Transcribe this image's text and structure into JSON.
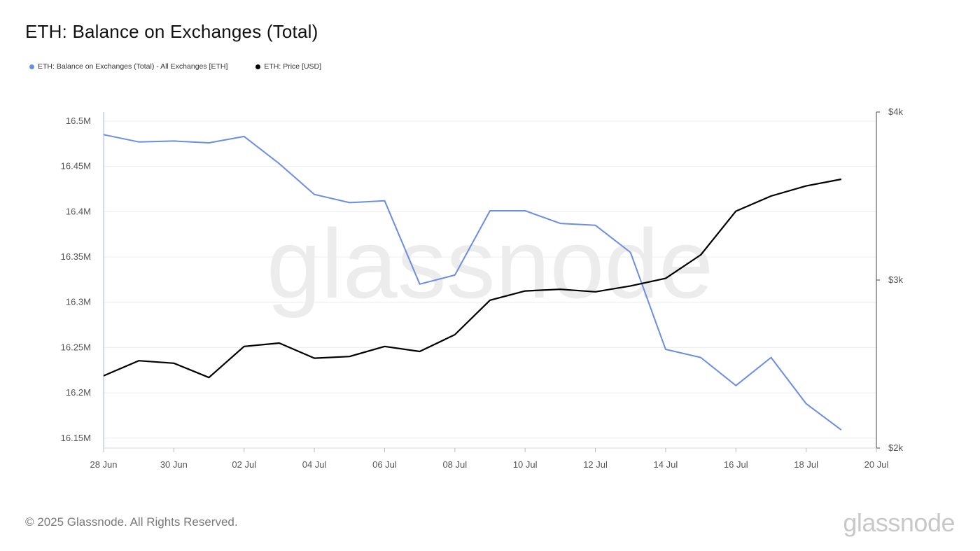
{
  "header": {
    "title": "ETH: Balance on Exchanges (Total)"
  },
  "legend": [
    {
      "label": "ETH: Balance on Exchanges (Total) - All Exchanges [ETH]",
      "color": "#6b8de3"
    },
    {
      "label": "ETH: Price [USD]",
      "color": "#000000"
    }
  ],
  "footer": {
    "copyright": "© 2025 Glassnode. All Rights Reserved.",
    "brand": "glassnode"
  },
  "watermark": "glassnode",
  "chart_data": {
    "type": "line",
    "x": [
      "28 Jun",
      "29 Jun",
      "30 Jun",
      "01 Jul",
      "02 Jul",
      "03 Jul",
      "04 Jul",
      "05 Jul",
      "06 Jul",
      "07 Jul",
      "08 Jul",
      "09 Jul",
      "10 Jul",
      "11 Jul",
      "12 Jul",
      "13 Jul",
      "14 Jul",
      "15 Jul",
      "16 Jul",
      "17 Jul",
      "18 Jul",
      "19 Jul"
    ],
    "x_ticks": [
      "28 Jun",
      "30 Jun",
      "02 Jul",
      "04 Jul",
      "06 Jul",
      "08 Jul",
      "10 Jul",
      "12 Jul",
      "14 Jul",
      "16 Jul",
      "18 Jul",
      "20 Jul"
    ],
    "y_left_ticks": [
      "16.15M",
      "16.2M",
      "16.25M",
      "16.3M",
      "16.35M",
      "16.4M",
      "16.45M",
      "16.5M"
    ],
    "y_left_tick_values": [
      16.15,
      16.2,
      16.25,
      16.3,
      16.35,
      16.4,
      16.45,
      16.5
    ],
    "y_left_range": [
      16.139,
      16.51
    ],
    "y_right_ticks": [
      "$2k",
      "$3k",
      "$4k"
    ],
    "y_right_tick_values": [
      2000,
      3000,
      4000
    ],
    "y_right_range": [
      2000,
      4000
    ],
    "grid": true,
    "legend_position": "top-left",
    "series": [
      {
        "name": "ETH: Balance on Exchanges (Total) - All Exchanges [ETH]",
        "axis": "left",
        "unit": "M ETH",
        "color": "#6b8de3",
        "values": [
          16.485,
          16.477,
          16.478,
          16.476,
          16.483,
          16.453,
          16.419,
          16.41,
          16.412,
          16.32,
          16.33,
          16.401,
          16.401,
          16.387,
          16.385,
          16.355,
          16.248,
          16.239,
          16.208,
          16.239,
          16.188,
          16.159
        ]
      },
      {
        "name": "ETH: Price [USD]",
        "axis": "right",
        "unit": "USD",
        "color": "#000000",
        "values": [
          2430,
          2520,
          2505,
          2420,
          2605,
          2625,
          2535,
          2545,
          2605,
          2575,
          2675,
          2880,
          2935,
          2945,
          2930,
          2965,
          3010,
          3150,
          3410,
          3500,
          3560,
          3600
        ]
      }
    ]
  }
}
